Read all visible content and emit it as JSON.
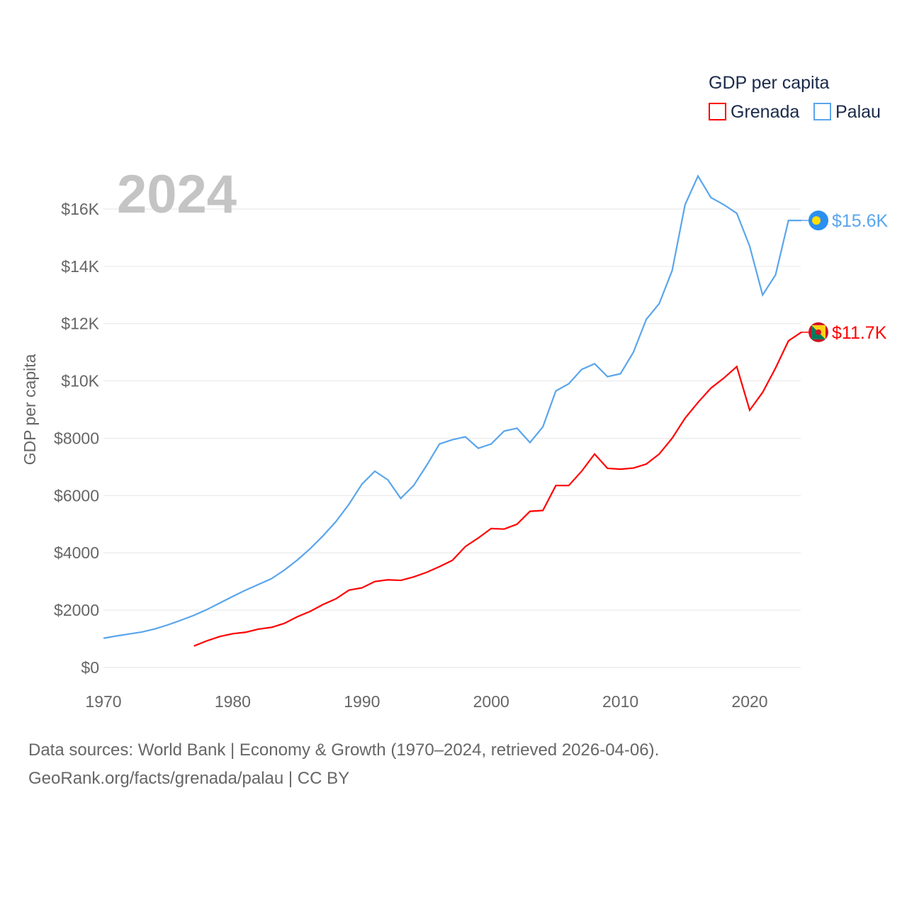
{
  "chart_data": {
    "type": "line",
    "year_label": "2024",
    "ylabel": "GDP per capita",
    "legend_title": "GDP per capita",
    "legend_position": "top-right",
    "xlim": [
      1970,
      2024
    ],
    "ylim": [
      0,
      17500
    ],
    "x_ticks": [
      {
        "v": 1970,
        "label": "1970"
      },
      {
        "v": 1980,
        "label": "1980"
      },
      {
        "v": 1990,
        "label": "1990"
      },
      {
        "v": 2000,
        "label": "2000"
      },
      {
        "v": 2010,
        "label": "2010"
      },
      {
        "v": 2020,
        "label": "2020"
      }
    ],
    "y_ticks": [
      {
        "v": 0,
        "label": "$0"
      },
      {
        "v": 2000,
        "label": "$2000"
      },
      {
        "v": 4000,
        "label": "$4000"
      },
      {
        "v": 6000,
        "label": "$6000"
      },
      {
        "v": 8000,
        "label": "$8000"
      },
      {
        "v": 10000,
        "label": "$10K"
      },
      {
        "v": 12000,
        "label": "$12K"
      },
      {
        "v": 14000,
        "label": "$14K"
      },
      {
        "v": 16000,
        "label": "$16K"
      }
    ],
    "grid": true,
    "series": [
      {
        "name": "Grenada",
        "color": "#ff0000",
        "end_label": "$11.7K",
        "start_year": 1977,
        "values": [
          750,
          930,
          1080,
          1180,
          1230,
          1340,
          1400,
          1540,
          1770,
          1960,
          2200,
          2400,
          2700,
          2780,
          3000,
          3060,
          3040,
          3160,
          3320,
          3520,
          3740,
          4220,
          4520,
          4850,
          4830,
          5000,
          5450,
          5480,
          6350,
          6350,
          6850,
          7450,
          6950,
          6920,
          6960,
          7100,
          7450,
          8000,
          8700,
          9250,
          9750,
          10100,
          10500,
          8980,
          9600,
          10450,
          11400,
          11700
        ]
      },
      {
        "name": "Palau",
        "color": "#5aa5ec",
        "end_label": "$15.6K",
        "start_year": 1970,
        "values": [
          1020,
          1100,
          1170,
          1240,
          1350,
          1490,
          1650,
          1820,
          2020,
          2250,
          2480,
          2700,
          2900,
          3100,
          3400,
          3750,
          4150,
          4600,
          5100,
          5700,
          6400,
          6850,
          6550,
          5900,
          6350,
          7050,
          7800,
          7950,
          8050,
          7650,
          7800,
          8250,
          8350,
          7850,
          8400,
          9650,
          9900,
          10400,
          10600,
          10150,
          10250,
          11000,
          12150,
          12700,
          13850,
          16150,
          17150,
          16400,
          16150,
          15850,
          14700,
          13000,
          13700,
          15600,
          15600
        ]
      }
    ]
  },
  "footer": {
    "line1": "Data sources: World Bank | Economy & Growth (1970–2024, retrieved 2026-04-06).",
    "line2": "GeoRank.org/facts/grenada/palau | CC BY"
  }
}
